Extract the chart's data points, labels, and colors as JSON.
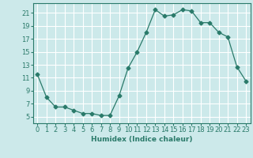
{
  "x": [
    0,
    1,
    2,
    3,
    4,
    5,
    6,
    7,
    8,
    9,
    10,
    11,
    12,
    13,
    14,
    15,
    16,
    17,
    18,
    19,
    20,
    21,
    22,
    23
  ],
  "y": [
    11.5,
    8.0,
    6.5,
    6.5,
    6.0,
    5.5,
    5.5,
    5.2,
    5.2,
    8.2,
    12.5,
    15.0,
    18.0,
    21.5,
    20.5,
    20.7,
    21.5,
    21.3,
    19.5,
    19.5,
    18.0,
    17.3,
    12.7,
    10.5
  ],
  "line_color": "#2a7a6a",
  "marker": "D",
  "marker_size": 2.5,
  "bg_color": "#cce9ea",
  "grid_color": "#ffffff",
  "xlabel": "Humidex (Indice chaleur)",
  "yticks": [
    5,
    7,
    9,
    11,
    13,
    15,
    17,
    19,
    21
  ],
  "xticks": [
    0,
    1,
    2,
    3,
    4,
    5,
    6,
    7,
    8,
    9,
    10,
    11,
    12,
    13,
    14,
    15,
    16,
    17,
    18,
    19,
    20,
    21,
    22,
    23
  ],
  "ylim": [
    4.0,
    22.5
  ],
  "xlim": [
    -0.5,
    23.5
  ],
  "label_fontsize": 6.5,
  "tick_fontsize": 6.0
}
